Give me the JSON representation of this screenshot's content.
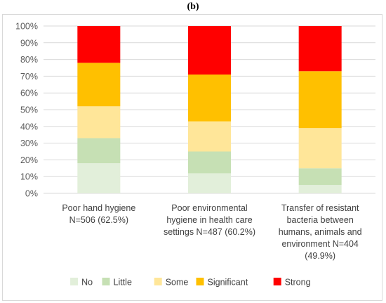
{
  "panel_label": "(b)",
  "chart_data": {
    "type": "bar",
    "stacked": true,
    "normalized_percent": true,
    "categories": [
      [
        "Poor hand hygiene",
        "N=506 (62.5%)"
      ],
      [
        "Poor environmental",
        "hygiene in health care",
        "settings N=487 (60.2%)"
      ],
      [
        "Transfer of resistant",
        "bacteria between",
        "humans, animals and",
        "environment N=404",
        "(49.9%)"
      ]
    ],
    "series": [
      {
        "name": "No",
        "color": "#e2efda",
        "values": [
          18,
          12,
          5
        ]
      },
      {
        "name": "Little",
        "color": "#c6e0b4",
        "values": [
          15,
          13,
          10
        ]
      },
      {
        "name": "Some",
        "color": "#ffe699",
        "values": [
          19,
          18,
          24
        ]
      },
      {
        "name": "Significant",
        "color": "#ffc000",
        "values": [
          26,
          28,
          34
        ]
      },
      {
        "name": "Strong",
        "color": "#ff0000",
        "values": [
          22,
          29,
          27
        ]
      }
    ],
    "ylim": [
      0,
      100
    ],
    "yticks": [
      "0%",
      "10%",
      "20%",
      "30%",
      "40%",
      "50%",
      "60%",
      "70%",
      "80%",
      "90%",
      "100%"
    ],
    "grid": true,
    "legend_position": "bottom"
  }
}
